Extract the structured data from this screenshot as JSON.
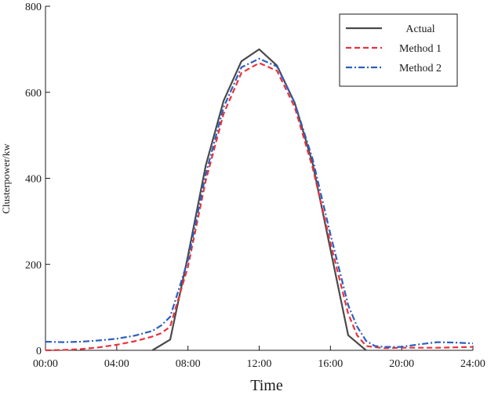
{
  "chart_data": {
    "type": "line",
    "xlabel": "Time",
    "ylabel": "Clusterpower/kw",
    "xlim": [
      0,
      24
    ],
    "ylim": [
      0,
      800
    ],
    "x_ticks": [
      {
        "value": 0,
        "label": "00:00"
      },
      {
        "value": 4,
        "label": "04:00"
      },
      {
        "value": 8,
        "label": "08:00"
      },
      {
        "value": 12,
        "label": "12:00"
      },
      {
        "value": 16,
        "label": "16:00"
      },
      {
        "value": 20,
        "label": "20:00"
      },
      {
        "value": 24,
        "label": "24:00"
      }
    ],
    "y_ticks": [
      {
        "value": 0,
        "label": "0"
      },
      {
        "value": 200,
        "label": "200"
      },
      {
        "value": 400,
        "label": "400"
      },
      {
        "value": 600,
        "label": "600"
      },
      {
        "value": 800,
        "label": "800"
      }
    ],
    "grid": false,
    "legend_position": "top-right",
    "series": [
      {
        "name": "Actual",
        "color": "#4a4a4a",
        "dash": "solid",
        "points": [
          [
            6,
            0
          ],
          [
            7,
            25
          ],
          [
            8,
            220
          ],
          [
            9,
            430
          ],
          [
            10,
            580
          ],
          [
            11,
            672
          ],
          [
            12,
            700
          ],
          [
            13,
            662
          ],
          [
            14,
            575
          ],
          [
            15,
            435
          ],
          [
            16,
            235
          ],
          [
            17,
            35
          ],
          [
            18,
            0
          ]
        ]
      },
      {
        "name": "Method 1",
        "color": "#e8323c",
        "dash": "dashed",
        "points": [
          [
            0,
            0
          ],
          [
            1,
            1
          ],
          [
            2,
            3
          ],
          [
            3,
            7
          ],
          [
            4,
            13
          ],
          [
            5,
            21
          ],
          [
            6,
            32
          ],
          [
            6.5,
            40
          ],
          [
            7,
            55
          ],
          [
            8,
            195
          ],
          [
            9,
            395
          ],
          [
            10,
            550
          ],
          [
            11,
            645
          ],
          [
            12,
            668
          ],
          [
            13,
            650
          ],
          [
            14,
            565
          ],
          [
            15,
            425
          ],
          [
            16,
            250
          ],
          [
            17,
            85
          ],
          [
            17.5,
            35
          ],
          [
            18,
            10
          ],
          [
            19,
            5
          ],
          [
            20,
            6
          ],
          [
            21,
            6
          ],
          [
            22,
            6
          ],
          [
            23,
            7
          ],
          [
            24,
            8
          ]
        ]
      },
      {
        "name": "Method 2",
        "color": "#2c5fbf",
        "dash": "dashdot",
        "points": [
          [
            0,
            20
          ],
          [
            1,
            19
          ],
          [
            2,
            20
          ],
          [
            3,
            23
          ],
          [
            4,
            27
          ],
          [
            5,
            34
          ],
          [
            6,
            45
          ],
          [
            6.5,
            58
          ],
          [
            7,
            78
          ],
          [
            8,
            210
          ],
          [
            9,
            410
          ],
          [
            10,
            565
          ],
          [
            11,
            658
          ],
          [
            12,
            678
          ],
          [
            13,
            660
          ],
          [
            14,
            575
          ],
          [
            15,
            445
          ],
          [
            16,
            270
          ],
          [
            17,
            105
          ],
          [
            17.5,
            55
          ],
          [
            18,
            22
          ],
          [
            18.5,
            10
          ],
          [
            19,
            8
          ],
          [
            20,
            8
          ],
          [
            21,
            14
          ],
          [
            22,
            19
          ],
          [
            23,
            18
          ],
          [
            24,
            16
          ]
        ]
      }
    ]
  }
}
